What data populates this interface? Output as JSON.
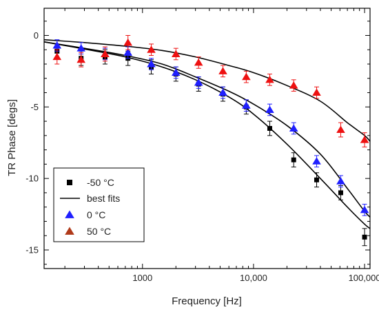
{
  "chart_data": {
    "type": "scatter",
    "xlabel": "Frequency [Hz]",
    "ylabel": "TR Phase [degs]",
    "x_scale": "log",
    "xlim": [
      130,
      112000
    ],
    "ylim": [
      -16.3,
      1.9
    ],
    "x_ticks": [
      {
        "value": 1000,
        "label": "1000"
      },
      {
        "value": 10000,
        "label": "10,000"
      },
      {
        "value": 100000,
        "label": "100,000"
      }
    ],
    "y_ticks": [
      {
        "value": 0,
        "label": "0"
      },
      {
        "value": -5,
        "label": "-5"
      },
      {
        "value": -10,
        "label": "-10"
      },
      {
        "value": -15,
        "label": "-15"
      }
    ],
    "grid": false,
    "legend_position": "bottom-left",
    "series": [
      {
        "name": "-50 °C",
        "marker": "square",
        "color": "#000000",
        "x": [
          170,
          280,
          460,
          740,
          1200,
          2000,
          3200,
          5300,
          8600,
          14000,
          23000,
          37000,
          61000,
          100000
        ],
        "y": [
          -1.1,
          -1.6,
          -1.5,
          -1.6,
          -2.2,
          -2.7,
          -3.4,
          -4.1,
          -5.0,
          -6.5,
          -8.7,
          -10.1,
          -11.0,
          -14.1
        ],
        "err": [
          0.5,
          0.5,
          0.5,
          0.5,
          0.5,
          0.5,
          0.5,
          0.5,
          0.5,
          0.5,
          0.5,
          0.5,
          0.5,
          0.6
        ]
      },
      {
        "name": "0 °C",
        "marker": "triangle",
        "color": "#1f1fff",
        "x": [
          170,
          280,
          460,
          740,
          1200,
          2000,
          3200,
          5300,
          8600,
          14000,
          23000,
          37000,
          61000,
          100000
        ],
        "y": [
          -0.7,
          -0.9,
          -1.3,
          -1.2,
          -2.0,
          -2.6,
          -3.3,
          -4.0,
          -4.9,
          -5.2,
          -6.5,
          -8.8,
          -10.2,
          -12.2
        ],
        "err": [
          0.4,
          0.4,
          0.4,
          0.4,
          0.4,
          0.4,
          0.4,
          0.4,
          0.4,
          0.4,
          0.4,
          0.4,
          0.4,
          0.4
        ]
      },
      {
        "name": "50 °C",
        "marker": "triangle",
        "color": "#ee1111",
        "x": [
          170,
          280,
          460,
          740,
          1200,
          2000,
          3200,
          5300,
          8600,
          14000,
          23000,
          37000,
          61000,
          100000
        ],
        "y": [
          -1.5,
          -1.7,
          -1.3,
          -0.5,
          -1.0,
          -1.3,
          -1.9,
          -2.5,
          -2.9,
          -3.1,
          -3.5,
          -4.0,
          -6.6,
          -7.3
        ],
        "err": [
          0.5,
          0.5,
          0.5,
          0.5,
          0.4,
          0.4,
          0.4,
          0.4,
          0.4,
          0.4,
          0.4,
          0.4,
          0.5,
          0.5
        ]
      }
    ],
    "fit_lines": [
      {
        "name": "best fits",
        "color": "#000000",
        "x": [
          130,
          300,
          700,
          1500,
          3000,
          6000,
          10000,
          20000,
          40000,
          70000,
          100000,
          112000
        ],
        "y": [
          -0.45,
          -0.95,
          -1.5,
          -2.2,
          -3.1,
          -4.3,
          -5.5,
          -7.6,
          -10.0,
          -12.0,
          -13.2,
          -13.5
        ]
      },
      {
        "name": "",
        "color": "#000000",
        "x": [
          130,
          300,
          700,
          1500,
          3000,
          6000,
          10000,
          20000,
          40000,
          70000,
          100000,
          112000
        ],
        "y": [
          -0.45,
          -0.9,
          -1.4,
          -2.0,
          -2.9,
          -3.9,
          -4.8,
          -6.3,
          -8.3,
          -10.7,
          -12.3,
          -12.7
        ]
      },
      {
        "name": "",
        "color": "#000000",
        "x": [
          130,
          300,
          700,
          1500,
          3000,
          6000,
          10000,
          20000,
          40000,
          70000,
          100000,
          112000
        ],
        "y": [
          -0.3,
          -0.5,
          -0.75,
          -1.05,
          -1.5,
          -2.1,
          -2.6,
          -3.5,
          -4.6,
          -6.1,
          -7.0,
          -7.4
        ]
      }
    ],
    "legend": [
      {
        "label": "-50 °C",
        "kind": "square",
        "color": "#000000"
      },
      {
        "label": "best fits",
        "kind": "line",
        "color": "#000000"
      },
      {
        "label": "0 °C",
        "kind": "triangle",
        "color": "#1f1fff"
      },
      {
        "label": "50 °C",
        "kind": "triangle",
        "color": "#b03a1a"
      }
    ]
  }
}
